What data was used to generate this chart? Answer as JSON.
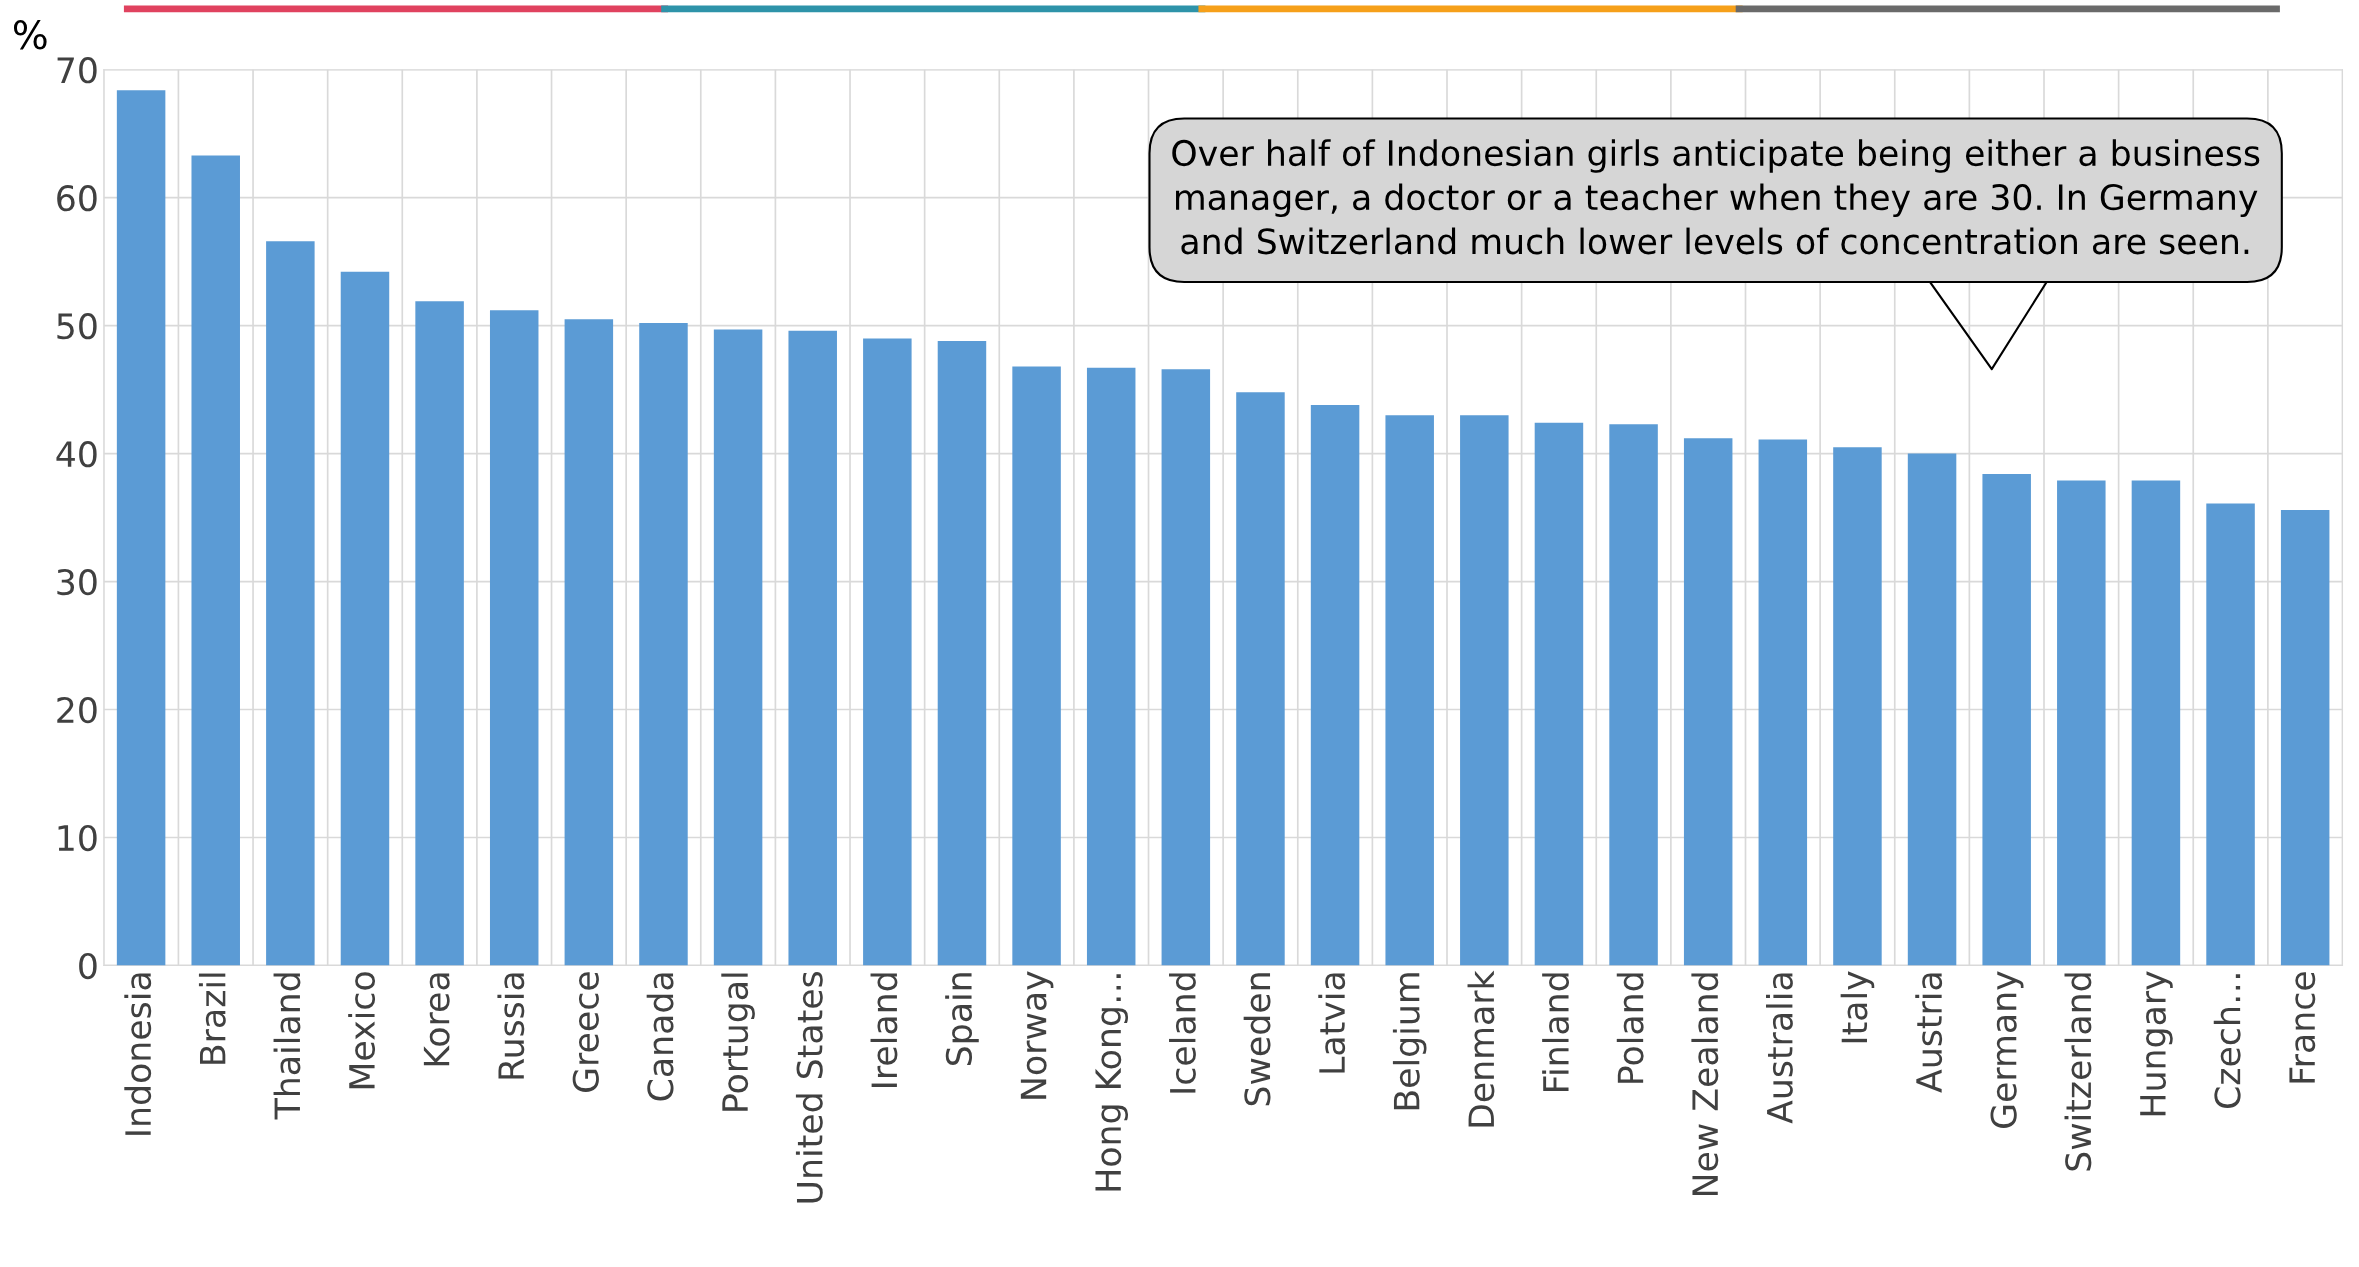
{
  "chart_data": {
    "type": "bar",
    "ylabel": "%",
    "categories": [
      "Indonesia",
      "Brazil",
      "Thailand",
      "Mexico",
      "Korea",
      "Russia",
      "Greece",
      "Canada",
      "Portugal",
      "United States",
      "Ireland",
      "Spain",
      "Norway",
      "Hong Kong…",
      "Iceland",
      "Sweden",
      "Latvia",
      "Belgium",
      "Denmark",
      "Finland",
      "Poland",
      "New Zealand",
      "Australia",
      "Italy",
      "Austria",
      "Germany",
      "Switzerland",
      "Hungary",
      "Czech…",
      "France"
    ],
    "values": [
      68.4,
      63.3,
      56.6,
      54.2,
      51.9,
      51.2,
      50.5,
      50.2,
      49.7,
      49.6,
      49.0,
      48.8,
      46.8,
      46.7,
      46.6,
      44.8,
      43.8,
      43.0,
      43.0,
      42.4,
      42.3,
      41.2,
      41.1,
      40.5,
      40.0,
      38.4,
      37.9,
      37.9,
      36.1,
      35.6
    ],
    "color": "#5b9bd5",
    "ylim": [
      0,
      70
    ],
    "yticks": [
      0,
      10,
      20,
      30,
      40,
      50,
      60,
      70
    ],
    "grid": true,
    "annotations": [
      "Over half of Indonesian girls anticipate being either a business manager, a doctor or a teacher when they are 30. In Germany and Switzerland much lower levels of concentration are seen."
    ]
  }
}
